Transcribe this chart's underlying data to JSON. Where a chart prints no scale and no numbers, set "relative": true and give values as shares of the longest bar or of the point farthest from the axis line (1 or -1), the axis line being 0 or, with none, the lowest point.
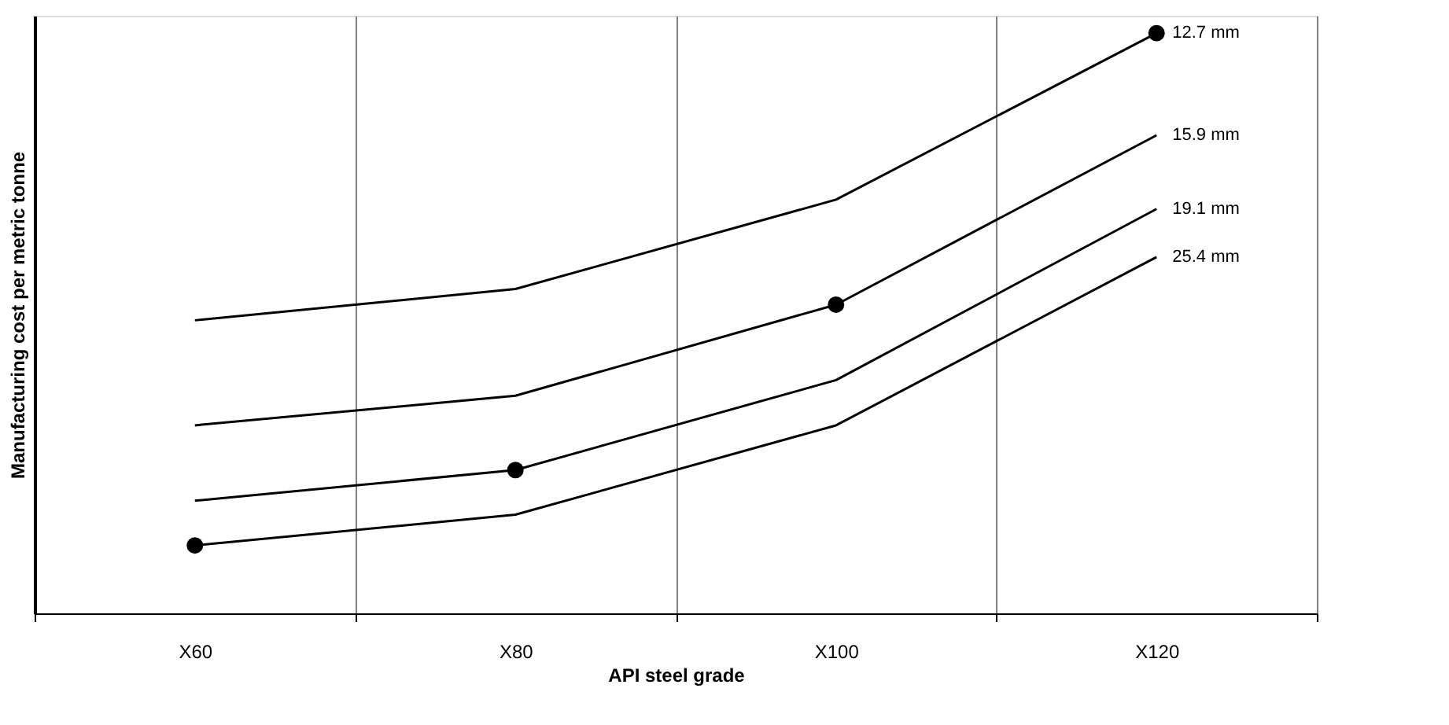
{
  "chart_data": {
    "type": "line",
    "relative": true,
    "xlabel": "API steel grade",
    "ylabel": "Manufacturing cost per metric tonne",
    "categories": [
      "X60",
      "X80",
      "X100",
      "X120"
    ],
    "grid": "x",
    "marker": "none",
    "line_style": "solid",
    "series": [
      {
        "name": "12.7 mm",
        "color": "#000000",
        "values": [
          0.505,
          0.559,
          0.713,
          1
        ]
      },
      {
        "name": "15.9 mm",
        "color": "#000000",
        "values": [
          0.324,
          0.375,
          0.532,
          0.824
        ]
      },
      {
        "name": "19.1 mm",
        "color": "#000000",
        "values": [
          0.194,
          0.247,
          0.402,
          0.697
        ]
      },
      {
        "name": "25.4 mm",
        "color": "#000000",
        "values": [
          0.117,
          0.17,
          0.324,
          0.614
        ]
      },
      {
        "type": "scatter",
        "marker": "circle",
        "color": "#000000",
        "values": [
          0.117,
          0.247,
          0.532,
          1
        ]
      }
    ]
  }
}
